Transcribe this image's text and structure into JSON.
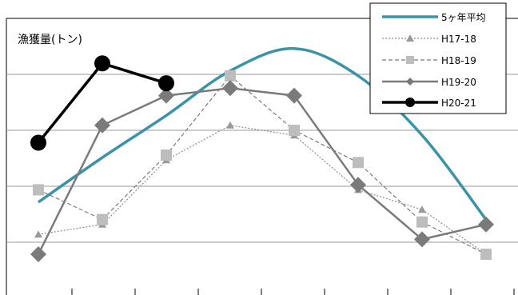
{
  "chart_data": {
    "type": "line",
    "ylabel": "漁獲量(トン)",
    "grid": true,
    "legend_position": "top-right",
    "categories": [
      "",
      "",
      "",
      "",
      "",
      "",
      "",
      ""
    ],
    "ylim": [
      0,
      100
    ],
    "series": [
      {
        "name": "5ヶ年平均",
        "color": "#3c93a8",
        "line": "solid",
        "marker": "none",
        "smooth": true,
        "values": [
          21,
          39,
          56,
          74,
          83,
          72,
          48,
          14
        ]
      },
      {
        "name": "H17-18",
        "color": "#8c8c8c",
        "line": "dotted",
        "marker": "triangle",
        "values": [
          8,
          12,
          38,
          52,
          48,
          26,
          18,
          0
        ]
      },
      {
        "name": "H18-19",
        "color": "#7a7a7a",
        "line": "dashed",
        "marker": "square",
        "values": [
          26,
          14,
          40,
          72,
          50,
          37,
          13,
          0
        ]
      },
      {
        "name": "H19-20",
        "color": "#7a7a7a",
        "line": "solid",
        "marker": "diamond",
        "values": [
          0,
          52,
          64,
          67,
          64,
          28,
          6,
          12
        ]
      },
      {
        "name": "H20-21",
        "color": "#000000",
        "line": "solid",
        "marker": "circle",
        "values": [
          45,
          77,
          69,
          null,
          null,
          null,
          null,
          null
        ]
      }
    ]
  }
}
